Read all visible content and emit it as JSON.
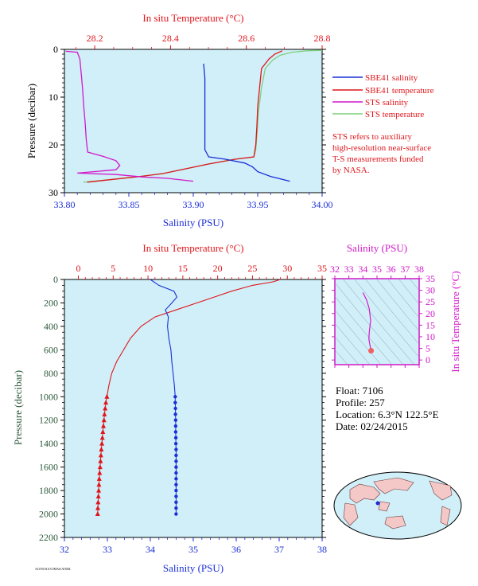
{
  "colors": {
    "background": "#d0eff9",
    "blue": "#1a2fd6",
    "red": "#e0161c",
    "magenta": "#d217c9",
    "green": "#7ed07a",
    "dark_green": "#2c5a3a",
    "axis_black": "#000000"
  },
  "chart_data": [
    {
      "type": "line",
      "xlabel_top": "In situ Temperature (°C)",
      "xlabel_bottom": "Salinity (PSU)",
      "ylabel": "Pressure (decibar)",
      "temp_ticks": [
        "28.2",
        "28.4",
        "28.6",
        "28.8"
      ],
      "sal_ticks": [
        "33.80",
        "33.85",
        "33.90",
        "33.95",
        "34.00"
      ],
      "p_ticks": [
        "0",
        "10",
        "20",
        "30"
      ],
      "xlim_temp": [
        28.12,
        28.8
      ],
      "xlim_sal": [
        33.8,
        34.0
      ],
      "ylim": [
        30,
        0
      ],
      "legend": [
        "SBE41 salinity",
        "SBE41 temperature",
        "STS salinity",
        "STS temperature"
      ],
      "note": [
        "STS refers to auxiliary",
        "high-resolution near-surface",
        "T-S measurements funded",
        "by NASA."
      ],
      "series": [
        {
          "name": "SBE41 salinity",
          "axis": "sal",
          "points": [
            [
              33.908,
              3
            ],
            [
              33.909,
              6
            ],
            [
              33.909,
              10
            ],
            [
              33.909,
              14
            ],
            [
              33.909,
              18
            ],
            [
              33.909,
              21
            ],
            [
              33.912,
              22.5
            ],
            [
              33.925,
              23.0
            ],
            [
              33.94,
              23.8
            ],
            [
              33.946,
              24.6
            ],
            [
              33.95,
              25.6
            ],
            [
              33.96,
              26.6
            ],
            [
              33.975,
              27.6
            ]
          ]
        },
        {
          "name": "SBE41 temperature",
          "axis": "temp",
          "points": [
            [
              28.695,
              0.3
            ],
            [
              28.675,
              1.0
            ],
            [
              28.66,
              2.0
            ],
            [
              28.64,
              4.0
            ],
            [
              28.635,
              8.0
            ],
            [
              28.63,
              12.0
            ],
            [
              28.628,
              16.0
            ],
            [
              28.625,
              20.0
            ],
            [
              28.62,
              22.5
            ],
            [
              28.57,
              23.0
            ],
            [
              28.5,
              24.0
            ],
            [
              28.44,
              25.0
            ],
            [
              28.38,
              26.0
            ],
            [
              28.32,
              26.6
            ],
            [
              28.25,
              27.2
            ],
            [
              28.18,
              27.8
            ]
          ]
        },
        {
          "name": "STS salinity",
          "axis": "sal",
          "points": [
            [
              33.801,
              0.4
            ],
            [
              33.81,
              0.6
            ],
            [
              33.812,
              2
            ],
            [
              33.813,
              5
            ],
            [
              33.814,
              8
            ],
            [
              33.815,
              12
            ],
            [
              33.816,
              15
            ],
            [
              33.817,
              19
            ],
            [
              33.818,
              21.5
            ],
            [
              33.83,
              22.4
            ],
            [
              33.84,
              23.3
            ],
            [
              33.843,
              24.3
            ],
            [
              33.84,
              25.2
            ],
            [
              33.81,
              25.9
            ],
            [
              33.84,
              26.2
            ],
            [
              33.86,
              26.7
            ],
            [
              33.88,
              27.0
            ],
            [
              33.9,
              27.6
            ]
          ]
        },
        {
          "name": "STS temperature",
          "axis": "temp",
          "points": [
            [
              28.8,
              0.2
            ],
            [
              28.76,
              0.3
            ],
            [
              28.72,
              0.6
            ],
            [
              28.69,
              1.2
            ],
            [
              28.67,
              2.2
            ],
            [
              28.65,
              4.0
            ],
            [
              28.64,
              8.0
            ],
            [
              28.632,
              13.0
            ],
            [
              28.628,
              18.0
            ],
            [
              28.625,
              21.0
            ],
            [
              28.62,
              22.5
            ],
            [
              28.57,
              23.0
            ],
            [
              28.5,
              24.0
            ],
            [
              28.44,
              25.0
            ],
            [
              28.38,
              26.0
            ],
            [
              28.32,
              26.6
            ],
            [
              28.25,
              27.2
            ],
            [
              28.17,
              27.8
            ]
          ]
        }
      ]
    },
    {
      "type": "line",
      "xlabel_top": "In situ Temperature (°C)",
      "xlabel_bottom": "Salinity (PSU)",
      "ylabel": "Pressure (decibar)",
      "temp_ticks": [
        "0",
        "5",
        "10",
        "15",
        "20",
        "25",
        "30",
        "35"
      ],
      "sal_ticks": [
        "32",
        "33",
        "34",
        "35",
        "36",
        "37",
        "38"
      ],
      "p_ticks": [
        "0",
        "200",
        "400",
        "600",
        "800",
        "1000",
        "1200",
        "1400",
        "1600",
        "1800",
        "2000",
        "2200"
      ],
      "xlim_temp": [
        -2,
        35
      ],
      "xlim_sal": [
        32,
        38
      ],
      "ylim": [
        2200,
        0
      ],
      "series": [
        {
          "name": "temperature",
          "axis": "temp",
          "points": [
            [
              29.0,
              0
            ],
            [
              28.0,
              20
            ],
            [
              25.0,
              50
            ],
            [
              22.0,
              100
            ],
            [
              19.5,
              150
            ],
            [
              17.0,
              200
            ],
            [
              14.0,
              260
            ],
            [
              11.0,
              320
            ],
            [
              9.0,
              400
            ],
            [
              7.5,
              500
            ],
            [
              6.5,
              600
            ],
            [
              5.5,
              700
            ],
            [
              4.8,
              800
            ],
            [
              4.4,
              900
            ],
            [
              4.1,
              1000
            ]
          ]
        },
        {
          "name": "salinity",
          "axis": "sal",
          "points": [
            [
              34.0,
              0
            ],
            [
              34.2,
              50
            ],
            [
              34.55,
              100
            ],
            [
              34.62,
              150
            ],
            [
              34.5,
              200
            ],
            [
              34.35,
              260
            ],
            [
              34.42,
              320
            ],
            [
              34.4,
              400
            ],
            [
              34.43,
              500
            ],
            [
              34.48,
              600
            ],
            [
              34.5,
              700
            ],
            [
              34.53,
              800
            ],
            [
              34.56,
              900
            ],
            [
              34.58,
              1000
            ]
          ]
        },
        {
          "name": "temperature-markers",
          "axis": "temp",
          "marker": "triangle",
          "points": [
            [
              4.1,
              1000
            ],
            [
              3.95,
              1050
            ],
            [
              3.85,
              1100
            ],
            [
              3.75,
              1150
            ],
            [
              3.68,
              1200
            ],
            [
              3.6,
              1250
            ],
            [
              3.52,
              1300
            ],
            [
              3.45,
              1350
            ],
            [
              3.38,
              1400
            ],
            [
              3.3,
              1450
            ],
            [
              3.24,
              1500
            ],
            [
              3.18,
              1550
            ],
            [
              3.12,
              1600
            ],
            [
              3.06,
              1650
            ],
            [
              3.0,
              1700
            ],
            [
              2.96,
              1750
            ],
            [
              2.92,
              1800
            ],
            [
              2.88,
              1850
            ],
            [
              2.84,
              1900
            ],
            [
              2.8,
              1950
            ],
            [
              2.77,
              2000
            ]
          ]
        },
        {
          "name": "salinity-markers",
          "axis": "sal",
          "marker": "circle",
          "points": [
            [
              34.58,
              1000
            ],
            [
              34.58,
              1050
            ],
            [
              34.585,
              1100
            ],
            [
              34.585,
              1150
            ],
            [
              34.59,
              1200
            ],
            [
              34.59,
              1250
            ],
            [
              34.59,
              1300
            ],
            [
              34.595,
              1350
            ],
            [
              34.595,
              1400
            ],
            [
              34.6,
              1450
            ],
            [
              34.6,
              1500
            ],
            [
              34.6,
              1550
            ],
            [
              34.6,
              1600
            ],
            [
              34.6,
              1650
            ],
            [
              34.6,
              1700
            ],
            [
              34.6,
              1750
            ],
            [
              34.6,
              1800
            ],
            [
              34.6,
              1850
            ],
            [
              34.6,
              1900
            ],
            [
              34.6,
              1950
            ],
            [
              34.6,
              2000
            ]
          ]
        }
      ]
    },
    {
      "type": "scatter",
      "xlabel_top": "Salinity (PSU)",
      "ylabel_right": "In situ Temperature (°C)",
      "sal_ticks": [
        "32",
        "33",
        "34",
        "35",
        "36",
        "37",
        "38"
      ],
      "temp_ticks": [
        "0",
        "5",
        "10",
        "15",
        "20",
        "25",
        "30",
        "35"
      ],
      "xlim": [
        32,
        38
      ],
      "ylim": [
        -2,
        35
      ],
      "series": [
        {
          "name": "T-S profile",
          "points": [
            [
              34.0,
              29
            ],
            [
              34.25,
              26
            ],
            [
              34.45,
              22
            ],
            [
              34.55,
              17
            ],
            [
              34.45,
              12
            ],
            [
              34.42,
              9
            ],
            [
              34.48,
              7
            ],
            [
              34.58,
              4
            ]
          ]
        }
      ]
    }
  ],
  "info": {
    "float": "Float:  7106",
    "profile": "Profile:  257",
    "location": "Location:  6.3°N  122.5°E",
    "date": "Date:  02/24/2015"
  },
  "footer": "AO/NOAA/CIMAS/AOML"
}
